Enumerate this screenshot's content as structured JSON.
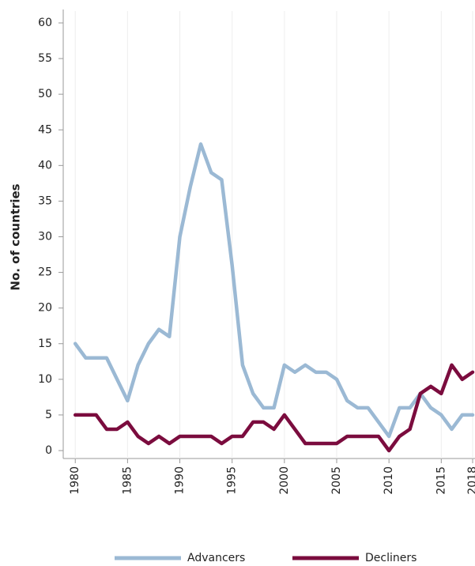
{
  "chart_data": {
    "type": "line",
    "ylabel": "No. of countries",
    "x": [
      1980,
      1981,
      1982,
      1983,
      1984,
      1985,
      1986,
      1987,
      1988,
      1989,
      1990,
      1991,
      1992,
      1993,
      1994,
      1995,
      1996,
      1997,
      1998,
      1999,
      2000,
      2001,
      2002,
      2003,
      2004,
      2005,
      2006,
      2007,
      2008,
      2009,
      2010,
      2011,
      2012,
      2013,
      2014,
      2015,
      2016,
      2017,
      2018
    ],
    "series": [
      {
        "name": "Advancers",
        "color": "#9bb9d4",
        "values": [
          15,
          13,
          13,
          13,
          10,
          7,
          12,
          15,
          17,
          16,
          30,
          37,
          43,
          39,
          38,
          26,
          12,
          8,
          6,
          6,
          12,
          11,
          12,
          11,
          11,
          10,
          7,
          6,
          6,
          4,
          2,
          6,
          6,
          8,
          6,
          5,
          3,
          5,
          5
        ]
      },
      {
        "name": "Decliners",
        "color": "#7b0c3e",
        "values": [
          5,
          5,
          5,
          3,
          3,
          4,
          2,
          1,
          2,
          1,
          2,
          2,
          2,
          2,
          1,
          2,
          2,
          4,
          4,
          3,
          5,
          3,
          1,
          1,
          1,
          1,
          2,
          2,
          2,
          2,
          0,
          2,
          3,
          8,
          9,
          8,
          12,
          10,
          11
        ]
      }
    ],
    "xlim": [
      1979,
      2018
    ],
    "xticks": [
      1980,
      1985,
      1990,
      1995,
      2000,
      2005,
      2010,
      2015,
      2018
    ],
    "ylim": [
      0,
      60
    ],
    "yticks": [
      0,
      5,
      10,
      15,
      20,
      25,
      30,
      35,
      40,
      45,
      50,
      55,
      60
    ],
    "legend": "bottom"
  }
}
